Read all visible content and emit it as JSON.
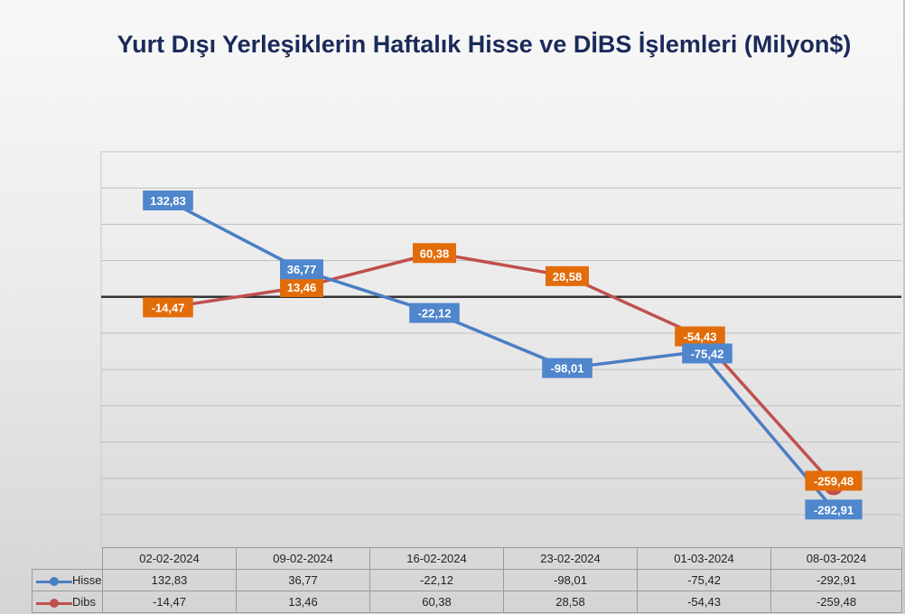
{
  "chart_data": {
    "type": "line",
    "title": "Yurt Dışı Yerleşiklerin Haftalık Hisse ve DİBS İşlemleri (Milyon$)",
    "categories": [
      "02-02-2024",
      "09-02-2024",
      "16-02-2024",
      "23-02-2024",
      "01-03-2024",
      "08-03-2024"
    ],
    "series": [
      {
        "name": "Hisse",
        "values": [
          132.83,
          36.77,
          -22.12,
          -98.01,
          -75.42,
          -292.91
        ],
        "labels": [
          "132,83",
          "36,77",
          "-22,12",
          "-98,01",
          "-75,42",
          "-292,91"
        ],
        "color": "#4a7ec4",
        "label_bg": "#4f86cc"
      },
      {
        "name": "Dibs",
        "values": [
          -14.47,
          13.46,
          60.38,
          28.58,
          -54.43,
          -259.48
        ],
        "labels": [
          "-14,47",
          "13,46",
          "60,38",
          "28,58",
          "-54,43",
          "-259,48"
        ],
        "color": "#c0504d",
        "label_bg": "#e36c0a"
      }
    ],
    "ylim": [
      -300,
      200
    ],
    "grid": true,
    "zero_line": true,
    "legend": "data-table"
  }
}
